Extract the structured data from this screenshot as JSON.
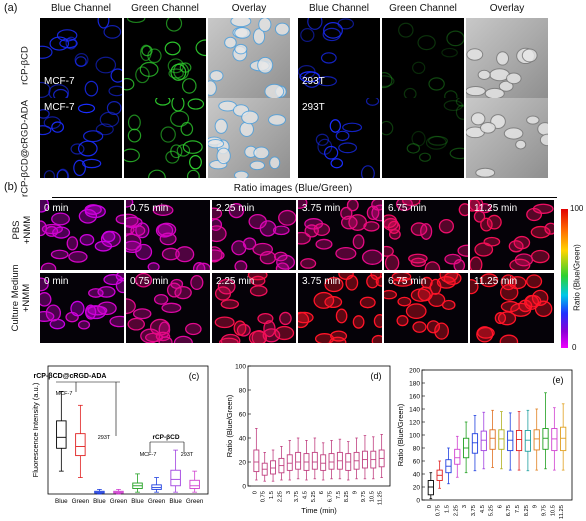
{
  "panel_a": {
    "label": "(a)",
    "column_headers": [
      "Blue Channel",
      "Green Channel",
      "Overlay",
      "Blue Channel",
      "Green Channel",
      "Overlay"
    ],
    "row_labels": [
      "rCP-βCD",
      "rCP-βCD@cRGD-ADA"
    ],
    "cell_labels": [
      "MCF-7",
      "293T",
      "MCF-7",
      "293T"
    ]
  },
  "panel_b": {
    "label": "(b)",
    "title": "Ratio images (Blue/Green)",
    "row_labels": [
      "PBS\n+NMM",
      "Culture Medium\n+NMM"
    ],
    "times": [
      "0 min",
      "0.75 min",
      "2.25 min",
      "3.75 min",
      "6.75 min",
      "11.25 min"
    ],
    "colorbar": {
      "max": "100",
      "min": "0",
      "label": "Ratio (Blue/Green)"
    }
  },
  "chart_data": [
    {
      "panel": "(c)",
      "type": "box",
      "ylabel": "Fluorescence Intensity (a.u.)",
      "ylim": [
        0,
        140
      ],
      "categories": [
        "Blue",
        "Green",
        "Blue",
        "Green",
        "Blue",
        "Green",
        "Blue",
        "Green"
      ],
      "annotations": [
        "rCP-βCD@cRGD-ADA",
        "MCF-7",
        "293T",
        "rCP-βCD",
        "MCF-7",
        "293T"
      ],
      "boxes": [
        {
          "color": "#000000",
          "min": 25,
          "q1": 50,
          "median": 62,
          "q3": 80,
          "max": 112
        },
        {
          "color": "#e02020",
          "min": 18,
          "q1": 42,
          "median": 52,
          "q3": 66,
          "max": 97
        },
        {
          "color": "#2040e0",
          "min": 0,
          "q1": 1,
          "median": 2,
          "q3": 3,
          "max": 5
        },
        {
          "color": "#d040d0",
          "min": 0,
          "q1": 1,
          "median": 2,
          "q3": 3,
          "max": 5
        },
        {
          "color": "#20a020",
          "min": 2,
          "q1": 6,
          "median": 9,
          "q3": 12,
          "max": 22
        },
        {
          "color": "#2040e0",
          "min": 2,
          "q1": 5,
          "median": 7,
          "q3": 10,
          "max": 18
        },
        {
          "color": "#a040e0",
          "min": 2,
          "q1": 9,
          "median": 16,
          "q3": 26,
          "max": 48
        },
        {
          "color": "#d040d0",
          "min": 2,
          "q1": 6,
          "median": 9,
          "q3": 15,
          "max": 25
        }
      ]
    },
    {
      "panel": "(d)",
      "type": "box",
      "xlabel": "Time (min)",
      "ylabel": "Ratio (Blue/Green)",
      "ylim": [
        0,
        100
      ],
      "yticks": [
        0,
        20,
        40,
        60,
        80,
        100
      ],
      "categories": [
        "0",
        "0.75",
        "1.5",
        "2.25",
        "3",
        "3.75",
        "4.5",
        "5.25",
        "6",
        "6.75",
        "7.5",
        "8.25",
        "9",
        "9.75",
        "10.5",
        "11.25"
      ],
      "boxes": [
        {
          "median": 20,
          "q1": 12,
          "q3": 30,
          "min": 5,
          "max": 48
        },
        {
          "median": 14,
          "q1": 9,
          "q3": 19,
          "min": 4,
          "max": 28
        },
        {
          "median": 15,
          "q1": 10,
          "q3": 21,
          "min": 4,
          "max": 30
        },
        {
          "median": 17,
          "q1": 11,
          "q3": 23,
          "min": 5,
          "max": 33
        },
        {
          "median": 19,
          "q1": 13,
          "q3": 26,
          "min": 5,
          "max": 38
        },
        {
          "median": 20,
          "q1": 14,
          "q3": 28,
          "min": 6,
          "max": 40
        },
        {
          "median": 20,
          "q1": 13,
          "q3": 27,
          "min": 5,
          "max": 38
        },
        {
          "median": 20,
          "q1": 14,
          "q3": 28,
          "min": 6,
          "max": 40
        },
        {
          "median": 19,
          "q1": 13,
          "q3": 26,
          "min": 5,
          "max": 36
        },
        {
          "median": 20,
          "q1": 14,
          "q3": 27,
          "min": 6,
          "max": 38
        },
        {
          "median": 21,
          "q1": 14,
          "q3": 28,
          "min": 6,
          "max": 39
        },
        {
          "median": 20,
          "q1": 13,
          "q3": 27,
          "min": 5,
          "max": 37
        },
        {
          "median": 21,
          "q1": 14,
          "q3": 28,
          "min": 6,
          "max": 40
        },
        {
          "median": 22,
          "q1": 15,
          "q3": 29,
          "min": 6,
          "max": 42
        },
        {
          "median": 22,
          "q1": 15,
          "q3": 29,
          "min": 6,
          "max": 41
        },
        {
          "median": 23,
          "q1": 16,
          "q3": 30,
          "min": 7,
          "max": 43
        }
      ]
    },
    {
      "panel": "(e)",
      "type": "box",
      "xlabel": "Time (min)",
      "ylabel": "Ratio (Blue/Green)",
      "ylim": [
        0,
        200
      ],
      "yticks": [
        0,
        20,
        40,
        60,
        80,
        100,
        120,
        140,
        160,
        180,
        200
      ],
      "categories": [
        "0",
        "0.75",
        "1.5",
        "2.25",
        "3",
        "3.75",
        "4.5",
        "5.25",
        "6",
        "6.75",
        "7.5",
        "8.25",
        "9",
        "9.75",
        "10.5",
        "11.25"
      ],
      "boxes": [
        {
          "median": 20,
          "q1": 8,
          "q3": 30,
          "min": 2,
          "max": 42
        },
        {
          "median": 38,
          "q1": 30,
          "q3": 46,
          "min": 18,
          "max": 60
        },
        {
          "median": 52,
          "q1": 42,
          "q3": 62,
          "min": 25,
          "max": 80
        },
        {
          "median": 65,
          "q1": 55,
          "q3": 78,
          "min": 35,
          "max": 98
        },
        {
          "median": 80,
          "q1": 65,
          "q3": 95,
          "min": 42,
          "max": 120
        },
        {
          "median": 88,
          "q1": 72,
          "q3": 102,
          "min": 45,
          "max": 130
        },
        {
          "median": 92,
          "q1": 76,
          "q3": 106,
          "min": 48,
          "max": 135
        },
        {
          "median": 95,
          "q1": 78,
          "q3": 108,
          "min": 50,
          "max": 138
        },
        {
          "median": 94,
          "q1": 78,
          "q3": 108,
          "min": 48,
          "max": 136
        },
        {
          "median": 92,
          "q1": 76,
          "q3": 106,
          "min": 46,
          "max": 134
        },
        {
          "median": 93,
          "q1": 76,
          "q3": 107,
          "min": 46,
          "max": 136
        },
        {
          "median": 92,
          "q1": 75,
          "q3": 107,
          "min": 45,
          "max": 138
        },
        {
          "median": 94,
          "q1": 77,
          "q3": 108,
          "min": 46,
          "max": 140
        },
        {
          "median": 95,
          "q1": 78,
          "q3": 110,
          "min": 48,
          "max": 165
        },
        {
          "median": 94,
          "q1": 76,
          "q3": 110,
          "min": 46,
          "max": 142
        },
        {
          "median": 95,
          "q1": 76,
          "q3": 112,
          "min": 46,
          "max": 148
        }
      ],
      "colors": [
        "#000000",
        "#e02020",
        "#2040e0",
        "#d040d0",
        "#20a020",
        "#2040e0",
        "#a040e0",
        "#e07020",
        "#b0b020",
        "#2040e0",
        "#e02020",
        "#20a0a0",
        "#e08020",
        "#20a020",
        "#d040d0",
        "#e0a020"
      ]
    }
  ],
  "colors": {
    "blue_channel": "#1a2dff",
    "green_channel": "#2fd12f",
    "ratio": "#ff1090"
  }
}
